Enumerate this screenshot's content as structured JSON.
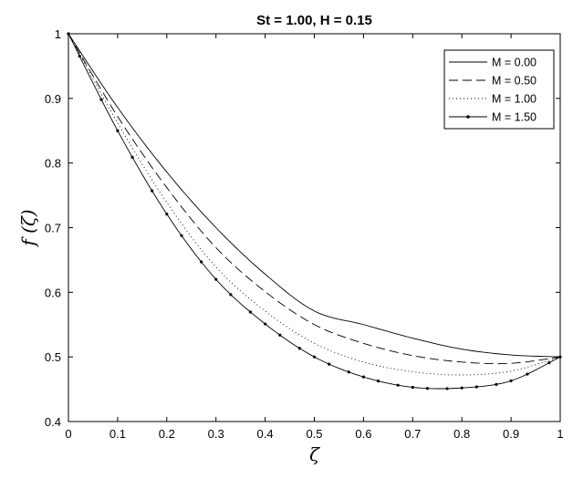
{
  "chart_data": {
    "type": "line",
    "title": "St = 1.00,  H = 0.15",
    "xlabel": "ζ",
    "ylabel": "f (ζ)",
    "xlim": [
      0,
      1
    ],
    "ylim": [
      0.4,
      1
    ],
    "xticks": [
      "0",
      "0.1",
      "0.2",
      "0.3",
      "0.4",
      "0.5",
      "0.6",
      "0.7",
      "0.8",
      "0.9",
      "1"
    ],
    "yticks": [
      "0.4",
      "0.5",
      "0.6",
      "0.7",
      "0.8",
      "0.9",
      "1"
    ],
    "grid": false,
    "legend_position": "top-right",
    "x": [
      0,
      0.1,
      0.2,
      0.3,
      0.4,
      0.5,
      0.6,
      0.7,
      0.8,
      0.9,
      1.0
    ],
    "series": [
      {
        "name": "M = 0.00",
        "style": "solid",
        "values": [
          1.0,
          0.886,
          0.786,
          0.7,
          0.628,
          0.571,
          0.55,
          0.529,
          0.512,
          0.503,
          0.5
        ]
      },
      {
        "name": "M = 0.50",
        "style": "dashed",
        "values": [
          1.0,
          0.872,
          0.762,
          0.669,
          0.601,
          0.55,
          0.521,
          0.502,
          0.492,
          0.49,
          0.5
        ]
      },
      {
        "name": "M = 1.00",
        "style": "dotted",
        "values": [
          1.0,
          0.862,
          0.739,
          0.639,
          0.571,
          0.521,
          0.492,
          0.477,
          0.472,
          0.478,
          0.5
        ]
      },
      {
        "name": "M = 1.50",
        "style": "marker",
        "values": [
          1.0,
          0.85,
          0.721,
          0.62,
          0.551,
          0.5,
          0.469,
          0.453,
          0.452,
          0.463,
          0.5
        ]
      }
    ]
  }
}
